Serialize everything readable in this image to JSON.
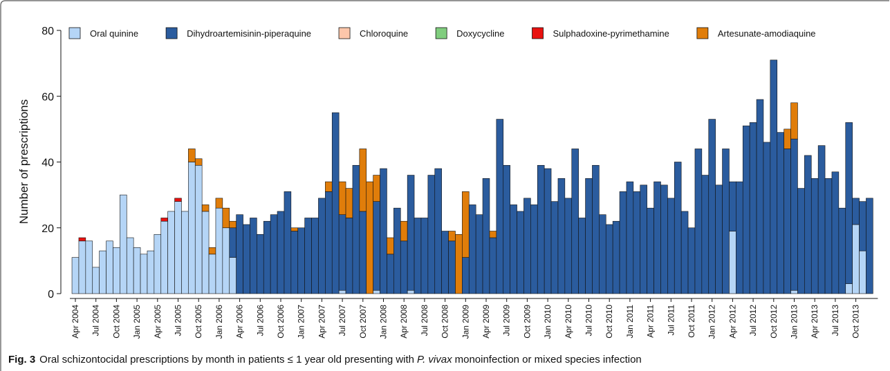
{
  "chart_data": {
    "type": "stacked_bar",
    "ylabel": "Number of prescriptions",
    "caption": {
      "label": "Fig. 3",
      "text_before": "Oral schizontocidal prescriptions by month in patients ≤ 1 year old presenting with",
      "italic": "P. vivax",
      "text_after": "monoinfection or mixed species infection"
    },
    "ylim": [
      0,
      80
    ],
    "yticks": [
      0,
      20,
      40,
      60,
      80
    ],
    "legend": "top-left",
    "categories": [
      "Apr 2004",
      null,
      null,
      "Jul 2004",
      null,
      null,
      "Oct 2004",
      null,
      null,
      "Jan 2005",
      null,
      null,
      "Apr 2005",
      null,
      null,
      "Jul 2005",
      null,
      null,
      "Oct 2005",
      null,
      null,
      "Jan 2006",
      null,
      null,
      "Apr 2006",
      null,
      null,
      "Jul 2006",
      null,
      null,
      "Oct 2006",
      null,
      null,
      "Jan 2007",
      null,
      null,
      "Apr 2007",
      null,
      null,
      "Jul 2007",
      null,
      null,
      "Oct 2007",
      null,
      null,
      "Jan 2008",
      null,
      null,
      "Apr 2008",
      null,
      null,
      "Jul 2008",
      null,
      null,
      "Oct 2008",
      null,
      null,
      "Jan 2009",
      null,
      null,
      "Apr 2009",
      null,
      null,
      "Jul 2009",
      null,
      null,
      "Oct 2009",
      null,
      null,
      "Jan 2010",
      null,
      null,
      "Apr 2010",
      null,
      null,
      "Jul 2010",
      null,
      null,
      "Oct 2010",
      null,
      null,
      "Jan 2011",
      null,
      null,
      "Apr 2011",
      null,
      null,
      "Jul 2011",
      null,
      null,
      "Oct 2011",
      null,
      null,
      "Jan 2012",
      null,
      null,
      "Apr 2012",
      null,
      null,
      "Jul 2012",
      null,
      null,
      "Oct 2012",
      null,
      null,
      "Jan 2013",
      null,
      null,
      "Apr 2013",
      null,
      null,
      "Jul 2013",
      null,
      null,
      "Oct 2013",
      null,
      null
    ],
    "series": [
      {
        "name": "Oral quinine",
        "color": "#b5d5f6",
        "values": [
          11,
          16,
          16,
          8,
          13,
          16,
          14,
          30,
          17,
          14,
          12,
          13,
          18,
          22,
          25,
          28,
          25,
          40,
          39,
          25,
          12,
          26,
          20,
          11,
          0,
          0,
          0,
          0,
          0,
          0,
          0,
          0,
          0,
          0,
          0,
          0,
          0,
          0,
          0,
          1,
          0,
          0,
          0,
          0,
          1,
          0,
          0,
          0,
          0,
          1,
          0,
          0,
          0,
          0,
          0,
          0,
          0,
          0,
          0,
          0,
          0,
          0,
          0,
          0,
          0,
          0,
          0,
          0,
          0,
          0,
          0,
          0,
          0,
          0,
          0,
          0,
          0,
          0,
          0,
          0,
          0,
          0,
          0,
          0,
          0,
          0,
          0,
          0,
          0,
          0,
          0,
          0,
          0,
          0,
          0,
          0,
          19,
          0,
          0,
          0,
          0,
          0,
          0,
          0,
          0,
          1,
          0,
          0,
          0,
          0,
          0,
          0,
          0,
          3,
          21,
          13,
          0
        ]
      },
      {
        "name": "Dihydroartemisinin-piperaquine",
        "color": "#2b5c9e",
        "values": [
          0,
          0,
          0,
          0,
          0,
          0,
          0,
          0,
          0,
          0,
          0,
          0,
          0,
          0,
          0,
          0,
          0,
          0,
          0,
          0,
          0,
          0,
          0,
          9,
          24,
          21,
          23,
          18,
          22,
          24,
          25,
          31,
          19,
          20,
          23,
          23,
          29,
          31,
          55,
          23,
          23,
          39,
          25,
          0,
          27,
          38,
          12,
          26,
          16,
          35,
          23,
          23,
          36,
          38,
          19,
          16,
          0,
          11,
          27,
          24,
          35,
          17,
          53,
          39,
          27,
          25,
          29,
          27,
          39,
          38,
          28,
          35,
          29,
          44,
          23,
          35,
          39,
          24,
          21,
          22,
          31,
          34,
          31,
          33,
          26,
          34,
          33,
          29,
          40,
          25,
          20,
          44,
          36,
          53,
          33,
          44,
          15,
          34,
          51,
          52,
          59,
          46,
          71,
          49,
          44,
          46,
          32,
          42,
          35,
          45,
          35,
          37,
          26,
          49,
          8,
          15,
          29
        ]
      },
      {
        "name": "Chloroquine",
        "color": "#fcc6aa",
        "values": [
          0,
          0,
          0,
          0,
          0,
          0,
          0,
          0,
          0,
          0,
          0,
          0,
          0,
          0,
          0,
          0,
          0,
          0,
          0,
          0,
          0,
          0,
          0,
          0,
          0,
          0,
          0,
          0,
          0,
          0,
          0,
          0,
          0,
          0,
          0,
          0,
          0,
          0,
          0,
          0,
          0,
          0,
          0,
          0,
          0,
          0,
          0,
          0,
          0,
          0,
          0,
          0,
          0,
          0,
          0,
          0,
          0,
          0,
          0,
          0,
          0,
          0,
          0,
          0,
          0,
          0,
          0,
          0,
          0,
          0,
          0,
          0,
          0,
          0,
          0,
          0,
          0,
          0,
          0,
          0,
          0,
          0,
          0,
          0,
          0,
          0,
          0,
          0,
          0,
          0,
          0,
          0,
          0,
          0,
          0,
          0,
          0,
          0,
          0,
          0,
          0,
          0,
          0,
          0,
          0,
          0,
          0,
          0,
          0,
          0,
          0,
          0,
          0,
          0,
          0,
          0,
          0
        ]
      },
      {
        "name": "Doxycycline",
        "color": "#80cd7e",
        "values": [
          0,
          0,
          0,
          0,
          0,
          0,
          0,
          0,
          0,
          0,
          0,
          0,
          0,
          0,
          0,
          0,
          0,
          0,
          0,
          0,
          0,
          0,
          0,
          0,
          0,
          0,
          0,
          0,
          0,
          0,
          0,
          0,
          0,
          0,
          0,
          0,
          0,
          0,
          0,
          0,
          0,
          0,
          0,
          0,
          0,
          0,
          0,
          0,
          0,
          0,
          0,
          0,
          0,
          0,
          0,
          0,
          0,
          0,
          0,
          0,
          0,
          0,
          0,
          0,
          0,
          0,
          0,
          0,
          0,
          0,
          0,
          0,
          0,
          0,
          0,
          0,
          0,
          0,
          0,
          0,
          0,
          0,
          0,
          0,
          0,
          0,
          0,
          0,
          0,
          0,
          0,
          0,
          0,
          0,
          0,
          0,
          0,
          0,
          0,
          0,
          0,
          0,
          0,
          0,
          0,
          0,
          0,
          0,
          0,
          0,
          0,
          0,
          0,
          0,
          0,
          0,
          0
        ]
      },
      {
        "name": "Sulphadoxine-pyrimethamine",
        "color": "#e8110f",
        "values": [
          0,
          1,
          0,
          0,
          0,
          0,
          0,
          0,
          0,
          0,
          0,
          0,
          0,
          1,
          0,
          1,
          0,
          0,
          0,
          0,
          0,
          0,
          0,
          0,
          0,
          0,
          0,
          0,
          0,
          0,
          0,
          0,
          0,
          0,
          0,
          0,
          0,
          0,
          0,
          0,
          0,
          0,
          0,
          0,
          0,
          0,
          0,
          0,
          0,
          0,
          0,
          0,
          0,
          0,
          0,
          0,
          0,
          0,
          0,
          0,
          0,
          0,
          0,
          0,
          0,
          0,
          0,
          0,
          0,
          0,
          0,
          0,
          0,
          0,
          0,
          0,
          0,
          0,
          0,
          0,
          0,
          0,
          0,
          0,
          0,
          0,
          0,
          0,
          0,
          0,
          0,
          0,
          0,
          0,
          0,
          0,
          0,
          0,
          0,
          0,
          0,
          0,
          0,
          0,
          0,
          0,
          0,
          0,
          0,
          0,
          0,
          0,
          0,
          0,
          0,
          0,
          0
        ]
      },
      {
        "name": "Artesunate-amodiaquine",
        "color": "#e07d0a",
        "values": [
          0,
          0,
          0,
          0,
          0,
          0,
          0,
          0,
          0,
          0,
          0,
          0,
          0,
          0,
          0,
          0,
          0,
          4,
          2,
          2,
          2,
          3,
          6,
          2,
          0,
          0,
          0,
          0,
          0,
          0,
          0,
          0,
          1,
          0,
          0,
          0,
          0,
          3,
          0,
          10,
          9,
          0,
          19,
          34,
          8,
          0,
          5,
          0,
          6,
          0,
          0,
          0,
          0,
          0,
          0,
          3,
          18,
          20,
          0,
          0,
          0,
          2,
          0,
          0,
          0,
          0,
          0,
          0,
          0,
          0,
          0,
          0,
          0,
          0,
          0,
          0,
          0,
          0,
          0,
          0,
          0,
          0,
          0,
          0,
          0,
          0,
          0,
          0,
          0,
          0,
          0,
          0,
          0,
          0,
          0,
          0,
          0,
          0,
          0,
          0,
          0,
          0,
          0,
          0,
          6,
          11,
          0,
          0,
          0,
          0,
          0,
          0,
          0,
          0,
          0,
          0,
          0
        ]
      }
    ]
  }
}
